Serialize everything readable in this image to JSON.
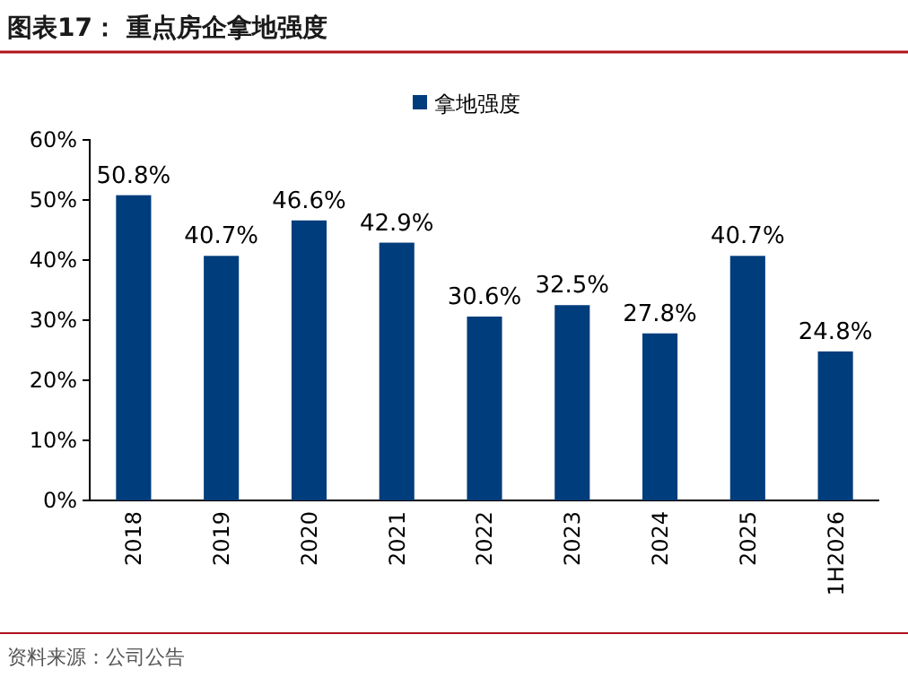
{
  "chart_data": {
    "type": "bar",
    "title": "图表17： 重点房企拿地强度",
    "categories": [
      "2018",
      "2019",
      "2020",
      "2021",
      "2022",
      "2023",
      "2024",
      "2025",
      "1H2026"
    ],
    "series": [
      {
        "name": "拿地强度",
        "color": "#003d7c",
        "values": [
          50.8,
          40.7,
          46.6,
          42.9,
          30.6,
          32.5,
          27.8,
          40.7,
          24.8
        ],
        "value_labels": [
          "50.8%",
          "40.7%",
          "46.6%",
          "42.9%",
          "30.6%",
          "32.5%",
          "27.8%",
          "40.7%",
          "24.8%"
        ]
      }
    ],
    "ylim": [
      0,
      60
    ],
    "yticks": [
      {
        "value": 0,
        "label": "0%"
      },
      {
        "value": 10,
        "label": "10%"
      },
      {
        "value": 20,
        "label": "20%"
      },
      {
        "value": 30,
        "label": "30%"
      },
      {
        "value": 40,
        "label": "40%"
      },
      {
        "value": 50,
        "label": "50%"
      },
      {
        "value": 60,
        "label": "60%"
      }
    ],
    "legend": "top",
    "annotations": [
      "资料来源：公司公告"
    ]
  }
}
